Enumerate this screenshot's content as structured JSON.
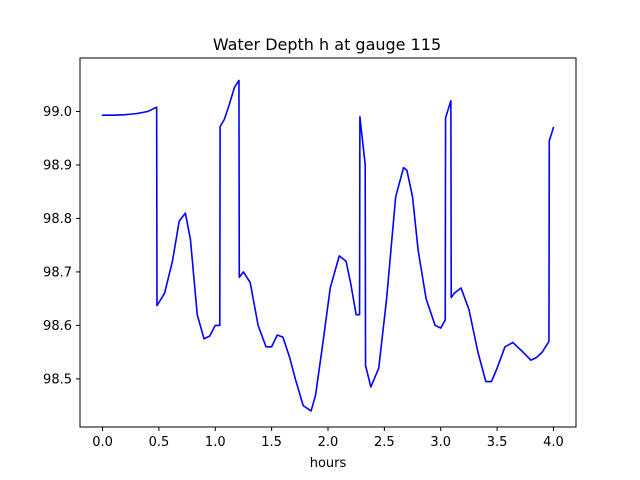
{
  "chart_data": {
    "type": "line",
    "title": "Water Depth h at gauge 115",
    "xlabel": "hours",
    "ylabel": "",
    "xlim": [
      -0.2,
      4.2
    ],
    "ylim": [
      98.41,
      99.1
    ],
    "grid": false,
    "x_ticks": [
      0.0,
      0.5,
      1.0,
      1.5,
      2.0,
      2.5,
      3.0,
      3.5,
      4.0
    ],
    "x_tick_labels": [
      "0.0",
      "0.5",
      "1.0",
      "1.5",
      "2.0",
      "2.5",
      "3.0",
      "3.5",
      "4.0"
    ],
    "y_ticks": [
      98.5,
      98.6,
      98.7,
      98.8,
      98.9,
      99.0
    ],
    "y_tick_labels": [
      "98.5",
      "98.6",
      "98.7",
      "98.8",
      "98.9",
      "99.0"
    ],
    "series": [
      {
        "color": "#0000ff",
        "x": [
          0.0,
          0.1,
          0.2,
          0.3,
          0.4,
          0.48,
          0.483,
          0.55,
          0.62,
          0.68,
          0.735,
          0.78,
          0.84,
          0.9,
          0.95,
          1.0,
          1.04,
          1.043,
          1.08,
          1.12,
          1.17,
          1.21,
          1.213,
          1.25,
          1.31,
          1.38,
          1.45,
          1.5,
          1.55,
          1.6,
          1.66,
          1.71,
          1.78,
          1.85,
          1.89,
          1.95,
          2.02,
          2.1,
          2.16,
          2.2,
          2.25,
          2.28,
          2.283,
          2.33,
          2.333,
          2.38,
          2.45,
          2.52,
          2.6,
          2.67,
          2.7,
          2.75,
          2.8,
          2.87,
          2.95,
          3.0,
          3.04,
          3.043,
          3.09,
          3.093,
          3.12,
          3.18,
          3.25,
          3.33,
          3.4,
          3.45,
          3.5,
          3.57,
          3.64,
          3.68,
          3.73,
          3.8,
          3.85,
          3.9,
          3.96,
          3.963,
          4.0
        ],
        "y": [
          98.993,
          98.993,
          98.994,
          98.996,
          99.0,
          99.008,
          98.637,
          98.66,
          98.72,
          98.795,
          98.81,
          98.76,
          98.62,
          98.575,
          98.58,
          98.6,
          98.6,
          98.972,
          98.985,
          99.01,
          99.045,
          99.058,
          98.69,
          98.7,
          98.68,
          98.6,
          98.56,
          98.56,
          98.582,
          98.578,
          98.54,
          98.5,
          98.45,
          98.44,
          98.47,
          98.56,
          98.67,
          98.73,
          98.72,
          98.68,
          98.62,
          98.62,
          98.99,
          98.9,
          98.525,
          98.485,
          98.52,
          98.65,
          98.84,
          98.895,
          98.89,
          98.84,
          98.74,
          98.65,
          98.6,
          98.595,
          98.61,
          98.988,
          99.02,
          98.652,
          98.66,
          98.67,
          98.63,
          98.55,
          98.495,
          98.495,
          98.52,
          98.56,
          98.568,
          98.56,
          98.55,
          98.535,
          98.54,
          98.55,
          98.57,
          98.945,
          98.97
        ]
      }
    ]
  }
}
